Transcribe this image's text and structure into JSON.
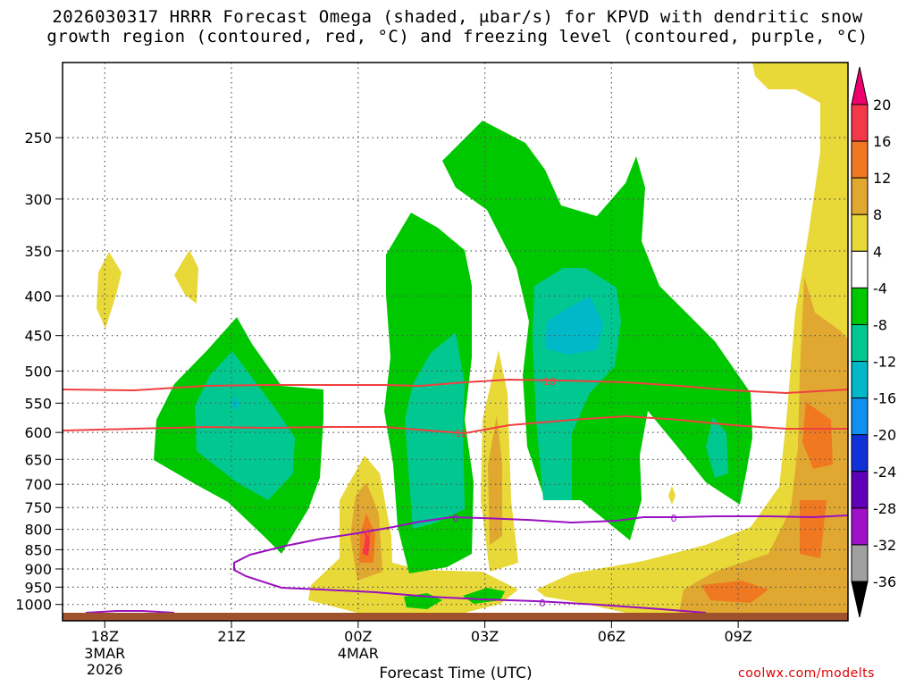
{
  "title": {
    "line1": "2026030317 HRRR Forecast Omega (shaded, μbar/s) for KPVD with dendritic snow",
    "line2": "growth region (contoured, red, °C) and freezing level (contoured, purple, °C)"
  },
  "watermark": "coolwx.com/modelts",
  "chart_data": {
    "type": "heatmap",
    "xlabel": "Forecast Time (UTC)",
    "ylabel": "",
    "y_scale": "log-pressure",
    "y_direction": "decreasing upward",
    "ylim": [
      1025,
      200
    ],
    "xlim": [
      17,
      11.6
    ],
    "x_ticks": [
      {
        "label": "18Z",
        "sub1": "3MAR",
        "sub2": "2026",
        "hour": 18
      },
      {
        "label": "21Z",
        "sub1": "",
        "sub2": "",
        "hour": 21
      },
      {
        "label": "00Z",
        "sub1": "4MAR",
        "sub2": "",
        "hour": 24
      },
      {
        "label": "03Z",
        "sub1": "",
        "sub2": "",
        "hour": 27
      },
      {
        "label": "06Z",
        "sub1": "",
        "sub2": "",
        "hour": 30
      },
      {
        "label": "09Z",
        "sub1": "",
        "sub2": "",
        "hour": 33
      }
    ],
    "y_ticks": [
      250,
      300,
      350,
      400,
      450,
      500,
      550,
      600,
      650,
      700,
      750,
      800,
      850,
      900,
      950,
      1000
    ],
    "grid": true,
    "colorbar": {
      "labels": [
        "20",
        "16",
        "12",
        "8",
        "4",
        "-4",
        "-8",
        "-12",
        "-16",
        "-20",
        "-24",
        "-28",
        "-32",
        "-36"
      ],
      "colors": [
        "#f0006e",
        "#f4384a",
        "#f07820",
        "#e0a830",
        "#e8d838",
        "#ffffff",
        "#00c800",
        "#00c890",
        "#00b8c8",
        "#1090f0",
        "#1030d8",
        "#6000b8",
        "#a010c8",
        "#a0a0a0",
        "#000000"
      ]
    },
    "contours": [
      {
        "name": "-18",
        "color": "#f04040",
        "label": "-18"
      },
      {
        "name": "-12",
        "color": "#f04040",
        "label": "-12"
      },
      {
        "name": "0",
        "color": "#9a10c0",
        "label": "0"
      }
    ]
  }
}
